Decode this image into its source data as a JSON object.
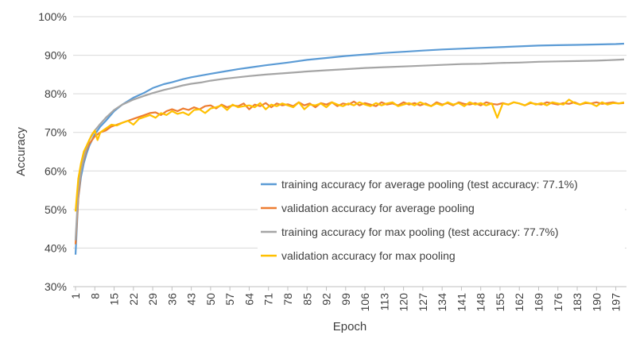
{
  "chart_data": {
    "type": "line",
    "title": "",
    "xlabel": "Epoch",
    "ylabel": "Accuracy",
    "xlim": [
      1,
      200
    ],
    "ylim": [
      0.3,
      1.0
    ],
    "y_ticks": [
      {
        "value": 0.3,
        "label": "30%"
      },
      {
        "value": 0.4,
        "label": "40%"
      },
      {
        "value": 0.5,
        "label": "50%"
      },
      {
        "value": 0.6,
        "label": "60%"
      },
      {
        "value": 0.7,
        "label": "70%"
      },
      {
        "value": 0.8,
        "label": "80%"
      },
      {
        "value": 0.9,
        "label": "90%"
      },
      {
        "value": 1.0,
        "label": "100%"
      }
    ],
    "x_ticks": [
      1,
      8,
      15,
      22,
      29,
      36,
      43,
      50,
      57,
      64,
      71,
      78,
      85,
      92,
      99,
      106,
      113,
      120,
      127,
      134,
      141,
      148,
      155,
      162,
      169,
      176,
      183,
      190,
      197
    ],
    "grid": "horizontal",
    "legend_position": "inside-bottom-right",
    "series": [
      {
        "name": "training accuracy for average pooling (test accuracy: 77.1%)",
        "color": "#5b9bd5",
        "x": [
          1,
          2,
          3,
          4,
          5,
          6,
          8,
          10,
          12,
          15,
          18,
          22,
          26,
          29,
          33,
          36,
          40,
          43,
          47,
          50,
          55,
          60,
          64,
          70,
          78,
          85,
          92,
          99,
          106,
          113,
          120,
          127,
          134,
          141,
          148,
          155,
          162,
          169,
          176,
          183,
          190,
          197,
          200
        ],
        "y": [
          0.383,
          0.53,
          0.585,
          0.62,
          0.645,
          0.665,
          0.695,
          0.715,
          0.73,
          0.755,
          0.772,
          0.79,
          0.803,
          0.815,
          0.825,
          0.83,
          0.838,
          0.843,
          0.848,
          0.852,
          0.858,
          0.864,
          0.868,
          0.874,
          0.881,
          0.888,
          0.893,
          0.898,
          0.902,
          0.906,
          0.909,
          0.912,
          0.915,
          0.917,
          0.919,
          0.921,
          0.923,
          0.925,
          0.926,
          0.927,
          0.928,
          0.929,
          0.93
        ]
      },
      {
        "name": "validation accuracy for average pooling",
        "color": "#ed7d31",
        "x": [
          1,
          2,
          3,
          4,
          5,
          6,
          7,
          8,
          9,
          10,
          12,
          14,
          16,
          18,
          20,
          22,
          24,
          26,
          28,
          30,
          32,
          34,
          36,
          38,
          40,
          42,
          44,
          46,
          48,
          50,
          52,
          54,
          56,
          58,
          60,
          62,
          64,
          66,
          68,
          70,
          72,
          74,
          76,
          78,
          80,
          82,
          84,
          86,
          88,
          90,
          92,
          94,
          96,
          98,
          100,
          102,
          104,
          106,
          108,
          110,
          112,
          114,
          116,
          118,
          120,
          122,
          124,
          126,
          128,
          130,
          132,
          134,
          136,
          138,
          140,
          142,
          144,
          146,
          148,
          150,
          152,
          154,
          156,
          158,
          160,
          162,
          164,
          166,
          168,
          170,
          172,
          174,
          176,
          178,
          180,
          182,
          184,
          186,
          188,
          190,
          192,
          194,
          196,
          198,
          200
        ],
        "y": [
          0.41,
          0.53,
          0.6,
          0.63,
          0.655,
          0.67,
          0.68,
          0.69,
          0.695,
          0.7,
          0.705,
          0.715,
          0.72,
          0.725,
          0.73,
          0.735,
          0.74,
          0.745,
          0.75,
          0.752,
          0.745,
          0.755,
          0.76,
          0.755,
          0.762,
          0.758,
          0.765,
          0.76,
          0.768,
          0.77,
          0.762,
          0.772,
          0.765,
          0.77,
          0.768,
          0.775,
          0.76,
          0.772,
          0.768,
          0.776,
          0.765,
          0.775,
          0.77,
          0.773,
          0.768,
          0.778,
          0.77,
          0.775,
          0.765,
          0.776,
          0.772,
          0.778,
          0.768,
          0.775,
          0.772,
          0.78,
          0.77,
          0.776,
          0.772,
          0.768,
          0.778,
          0.772,
          0.775,
          0.77,
          0.778,
          0.772,
          0.776,
          0.77,
          0.775,
          0.768,
          0.778,
          0.772,
          0.776,
          0.77,
          0.778,
          0.774,
          0.772,
          0.776,
          0.77,
          0.778,
          0.774,
          0.772,
          0.776,
          0.772,
          0.778,
          0.775,
          0.77,
          0.776,
          0.774,
          0.772,
          0.778,
          0.775,
          0.772,
          0.776,
          0.774,
          0.778,
          0.772,
          0.776,
          0.775,
          0.778,
          0.774,
          0.776,
          0.778,
          0.775,
          0.776
        ]
      },
      {
        "name": "training accuracy for max pooling (test accuracy: 77.7%)",
        "color": "#a5a5a5",
        "x": [
          1,
          2,
          3,
          4,
          5,
          6,
          8,
          10,
          12,
          15,
          18,
          22,
          26,
          29,
          33,
          36,
          40,
          43,
          47,
          50,
          55,
          60,
          64,
          70,
          78,
          85,
          92,
          99,
          106,
          113,
          120,
          127,
          134,
          141,
          148,
          155,
          162,
          169,
          176,
          183,
          190,
          197,
          200
        ],
        "y": [
          0.42,
          0.55,
          0.6,
          0.635,
          0.66,
          0.68,
          0.705,
          0.722,
          0.738,
          0.758,
          0.772,
          0.785,
          0.795,
          0.802,
          0.81,
          0.815,
          0.822,
          0.826,
          0.83,
          0.834,
          0.839,
          0.843,
          0.846,
          0.85,
          0.854,
          0.858,
          0.861,
          0.864,
          0.867,
          0.869,
          0.871,
          0.873,
          0.875,
          0.877,
          0.878,
          0.88,
          0.881,
          0.883,
          0.884,
          0.885,
          0.886,
          0.888,
          0.889
        ]
      },
      {
        "name": "validation accuracy for max pooling",
        "color": "#ffc000",
        "x": [
          1,
          2,
          3,
          4,
          5,
          6,
          7,
          8,
          9,
          10,
          12,
          14,
          16,
          18,
          20,
          22,
          24,
          26,
          28,
          30,
          32,
          34,
          36,
          38,
          40,
          42,
          44,
          46,
          48,
          50,
          52,
          54,
          56,
          58,
          60,
          62,
          64,
          66,
          68,
          70,
          72,
          74,
          76,
          78,
          80,
          82,
          84,
          86,
          88,
          90,
          92,
          94,
          96,
          98,
          100,
          102,
          104,
          106,
          108,
          110,
          112,
          114,
          116,
          118,
          120,
          122,
          124,
          126,
          128,
          130,
          132,
          134,
          136,
          138,
          140,
          142,
          144,
          146,
          148,
          150,
          152,
          154,
          156,
          158,
          160,
          162,
          164,
          166,
          168,
          170,
          172,
          174,
          176,
          178,
          180,
          182,
          184,
          186,
          188,
          190,
          192,
          194,
          196,
          198,
          200
        ],
        "y": [
          0.495,
          0.58,
          0.62,
          0.65,
          0.665,
          0.68,
          0.695,
          0.705,
          0.68,
          0.7,
          0.71,
          0.72,
          0.718,
          0.725,
          0.73,
          0.72,
          0.735,
          0.74,
          0.745,
          0.738,
          0.75,
          0.745,
          0.755,
          0.748,
          0.752,
          0.745,
          0.758,
          0.76,
          0.75,
          0.762,
          0.765,
          0.77,
          0.758,
          0.772,
          0.765,
          0.768,
          0.77,
          0.765,
          0.776,
          0.76,
          0.772,
          0.768,
          0.775,
          0.77,
          0.765,
          0.778,
          0.76,
          0.772,
          0.77,
          0.775,
          0.765,
          0.778,
          0.772,
          0.768,
          0.775,
          0.77,
          0.778,
          0.772,
          0.768,
          0.776,
          0.77,
          0.775,
          0.778,
          0.768,
          0.772,
          0.776,
          0.77,
          0.778,
          0.772,
          0.768,
          0.775,
          0.77,
          0.778,
          0.772,
          0.776,
          0.768,
          0.778,
          0.772,
          0.776,
          0.77,
          0.775,
          0.738,
          0.775,
          0.772,
          0.778,
          0.775,
          0.77,
          0.778,
          0.772,
          0.776,
          0.77,
          0.778,
          0.775,
          0.772,
          0.785,
          0.776,
          0.772,
          0.778,
          0.775,
          0.768,
          0.778,
          0.772,
          0.776,
          0.775,
          0.778
        ]
      }
    ]
  }
}
